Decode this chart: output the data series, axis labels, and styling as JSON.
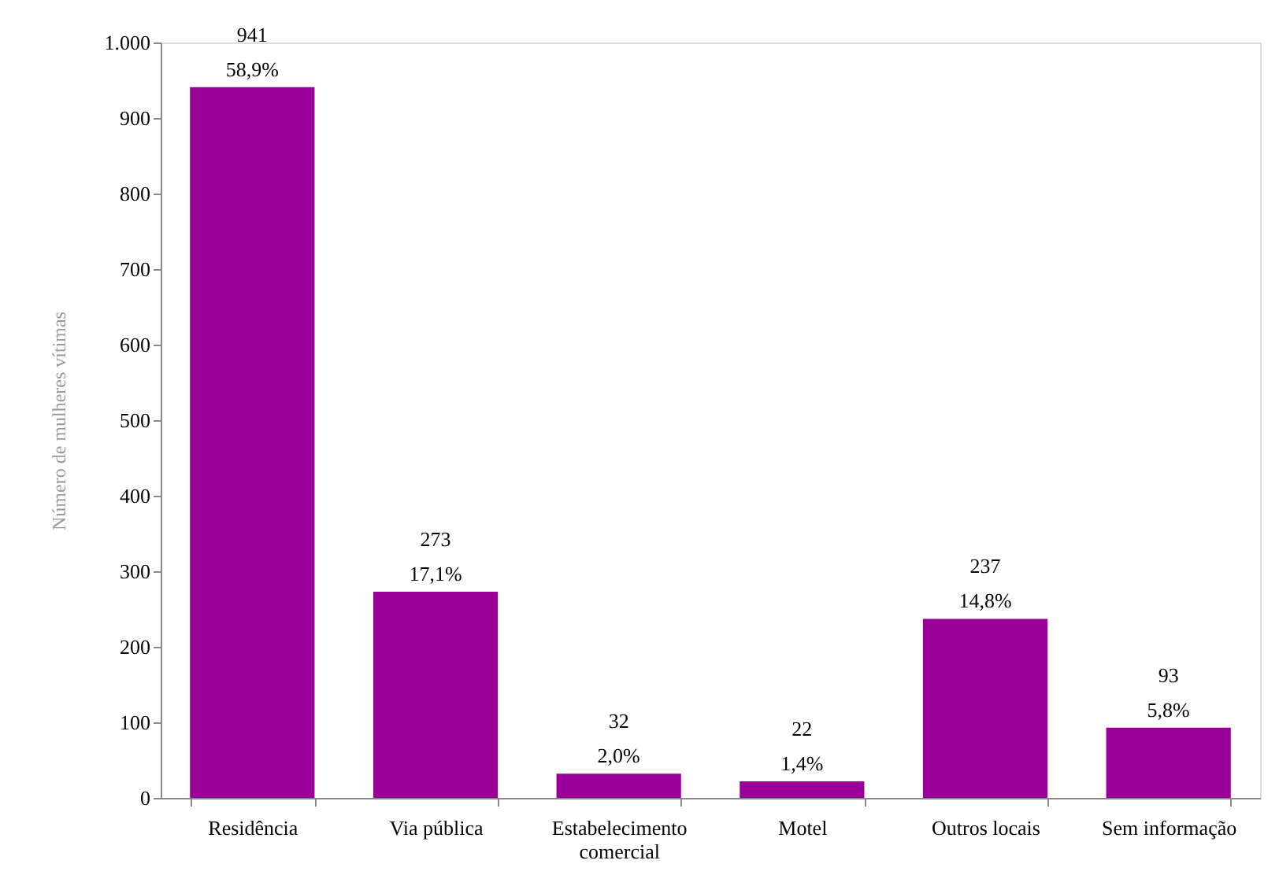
{
  "chart_data": {
    "type": "bar",
    "ylabel": "Número de mulheres vítimas",
    "categories": [
      "Residência",
      "Via pública",
      "Estabelecimento comercial",
      "Motel",
      "Outros locais",
      "Sem informação"
    ],
    "values": [
      941,
      273,
      32,
      22,
      237,
      93
    ],
    "value_labels": [
      "941\n58,9%",
      "273\n17,1%",
      "32\n2,0%",
      "22\n1,4%",
      "237\n14,8%",
      "93\n5,8%"
    ],
    "color": "#990099",
    "ylim": [
      0,
      1000
    ],
    "yticks": [
      0,
      100,
      200,
      300,
      400,
      500,
      600,
      700,
      800,
      900,
      {
        "value": 1000,
        "label": "1.000"
      }
    ],
    "grid": false
  }
}
